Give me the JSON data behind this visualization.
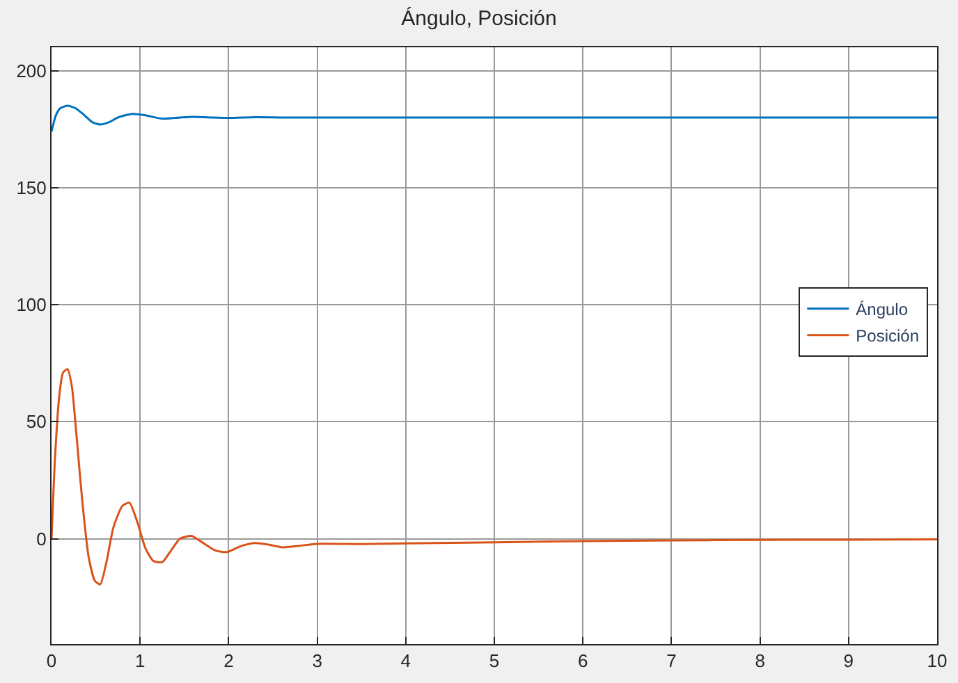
{
  "chart_data": {
    "type": "line",
    "title": "Ángulo, Posición",
    "xlim": [
      0,
      10
    ],
    "xticks": [
      0,
      1,
      2,
      3,
      4,
      5,
      6,
      7,
      8,
      9,
      10
    ],
    "ylim": [
      -45,
      210
    ],
    "yticks": [
      0,
      50,
      100,
      150,
      200
    ],
    "grid": true,
    "legend": "right",
    "line_style": "solid",
    "marker": "none",
    "series": [
      {
        "name": "Ángulo",
        "color": "#0072bd",
        "x": [
          0,
          0.05,
          0.1,
          0.18,
          0.27,
          0.37,
          0.46,
          0.55,
          0.65,
          0.75,
          0.9,
          1.05,
          1.25,
          1.45,
          1.6,
          1.8,
          2.0,
          2.3,
          2.6,
          3.0,
          4.0,
          5.0,
          6.0,
          8.0,
          10.0
        ],
        "values": [
          174,
          181,
          184,
          185,
          184,
          181,
          178,
          177,
          178,
          180,
          181.5,
          181,
          179.5,
          180,
          180.3,
          180,
          179.8,
          180.1,
          180,
          180,
          180,
          180,
          180,
          180,
          180
        ]
      },
      {
        "name": "Posición",
        "color": "#d95319",
        "x": [
          0,
          0.04,
          0.09,
          0.13,
          0.18,
          0.23,
          0.28,
          0.35,
          0.42,
          0.49,
          0.55,
          0.62,
          0.7,
          0.8,
          0.88,
          0.97,
          1.06,
          1.15,
          1.25,
          1.35,
          1.45,
          1.58,
          1.7,
          1.85,
          1.98,
          2.15,
          2.3,
          2.45,
          2.61,
          2.8,
          3.0,
          3.5,
          4.0,
          5.0,
          6.0,
          7.0,
          8.0,
          9.0,
          10.0
        ],
        "values": [
          0,
          35,
          62,
          71,
          72.5,
          65,
          45,
          15,
          -8,
          -18,
          -19.5,
          -10,
          5,
          14,
          15.4,
          7,
          -4,
          -9.5,
          -10,
          -5,
          0,
          1.2,
          -1.5,
          -5,
          -5.7,
          -3,
          -1.8,
          -2.5,
          -3.7,
          -3,
          -2.2,
          -2.3,
          -2,
          -1.5,
          -1,
          -0.7,
          -0.5,
          -0.4,
          -0.3
        ]
      }
    ]
  }
}
